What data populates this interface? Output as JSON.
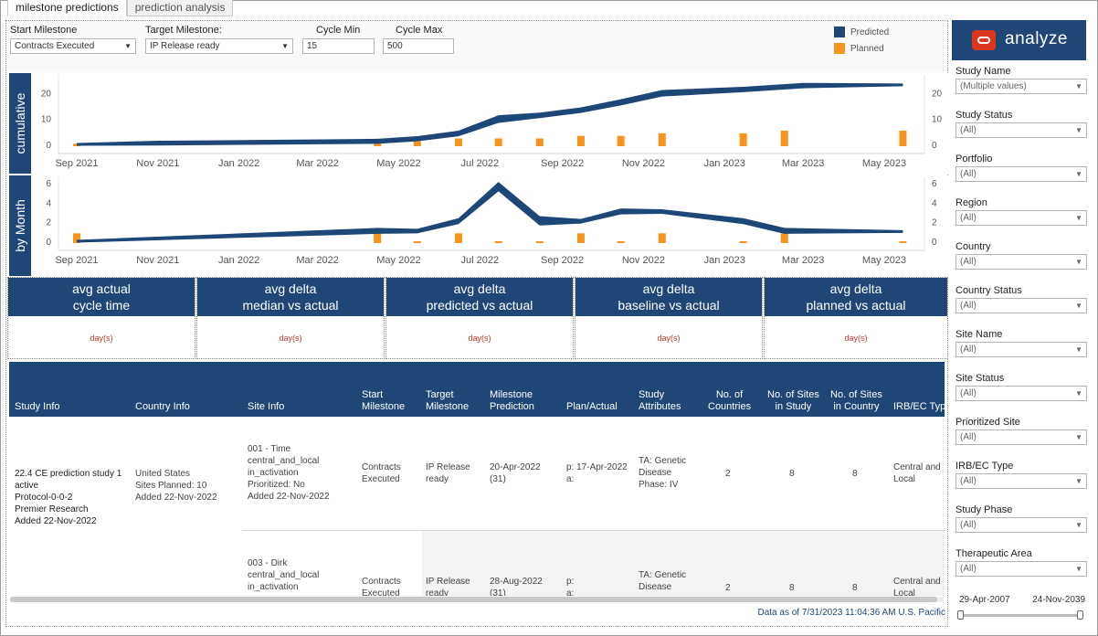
{
  "tabs": [
    {
      "label": "milestone predictions",
      "active": true
    },
    {
      "label": "prediction analysis",
      "active": false
    }
  ],
  "controls": {
    "start_milestone": {
      "label": "Start Milestone",
      "value": "Contracts Executed"
    },
    "target_milestone": {
      "label": "Target Milestone:",
      "value": "IP Release ready"
    },
    "cycle_min": {
      "label": "Cycle Min",
      "value": "15"
    },
    "cycle_max": {
      "label": "Cycle Max",
      "value": "500"
    }
  },
  "legend": {
    "predicted": {
      "label": "Predicted",
      "color": "#1e4778"
    },
    "planned": {
      "label": "Planned",
      "color": "#f7941d"
    }
  },
  "chart_data": [
    {
      "type": "line",
      "panel_label": "cumulative",
      "x_ticks": [
        "Sep 2021",
        "Nov 2021",
        "Jan 2022",
        "Mar 2022",
        "May 2022",
        "Jul 2022",
        "Sep 2022",
        "Nov 2022",
        "Jan 2023",
        "Mar 2023",
        "May 2023"
      ],
      "y_ticks_left": [
        0,
        10,
        20
      ],
      "y_ticks_right": [
        0,
        10,
        20
      ],
      "ylim": [
        0,
        24
      ],
      "series": [
        {
          "name": "Predicted",
          "color": "#1e4778",
          "points": [
            [
              "2021-09-01",
              0
            ],
            [
              "2021-11-01",
              0.3
            ],
            [
              "2022-04-15",
              1
            ],
            [
              "2022-05-15",
              2
            ],
            [
              "2022-06-15",
              4
            ],
            [
              "2022-07-15",
              9.5
            ],
            [
              "2022-08-15",
              11
            ],
            [
              "2022-09-15",
              13
            ],
            [
              "2022-10-15",
              16
            ],
            [
              "2022-11-15",
              19.5
            ],
            [
              "2023-01-15",
              21
            ],
            [
              "2023-03-01",
              22.5
            ],
            [
              "2023-05-15",
              23
            ]
          ]
        },
        {
          "name": "Planned",
          "color": "#f7941d",
          "type": "bar",
          "points": [
            [
              "2021-09-01",
              1
            ],
            [
              "2022-04-15",
              1.5
            ],
            [
              "2022-05-15",
              2
            ],
            [
              "2022-06-15",
              3
            ],
            [
              "2022-07-15",
              3
            ],
            [
              "2022-08-15",
              3
            ],
            [
              "2022-09-15",
              4
            ],
            [
              "2022-10-15",
              4
            ],
            [
              "2022-11-15",
              5
            ],
            [
              "2023-01-15",
              5
            ],
            [
              "2023-02-15",
              6
            ],
            [
              "2023-05-15",
              6
            ]
          ]
        }
      ]
    },
    {
      "type": "line",
      "panel_label": "by Month",
      "x_ticks": [
        "Sep 2021",
        "Nov 2021",
        "Jan 2022",
        "Mar 2022",
        "May 2022",
        "Jul 2022",
        "Sep 2022",
        "Nov 2022",
        "Jan 2023",
        "Mar 2023",
        "May 2023"
      ],
      "y_ticks_left": [
        0,
        2,
        4,
        6
      ],
      "y_ticks_right": [
        0,
        2,
        4,
        6
      ],
      "ylim": [
        0,
        6
      ],
      "series": [
        {
          "name": "Predicted",
          "color": "#1e4778",
          "points": [
            [
              "2021-09-01",
              0
            ],
            [
              "2022-04-15",
              1
            ],
            [
              "2022-05-15",
              1
            ],
            [
              "2022-06-15",
              2
            ],
            [
              "2022-07-15",
              5.5
            ],
            [
              "2022-08-15",
              2
            ],
            [
              "2022-09-15",
              2
            ],
            [
              "2022-10-15",
              3
            ],
            [
              "2022-11-15",
              3
            ],
            [
              "2023-01-15",
              2
            ],
            [
              "2023-02-15",
              1
            ],
            [
              "2023-05-15",
              1
            ]
          ]
        },
        {
          "name": "Planned",
          "color": "#f7941d",
          "type": "bar",
          "points": [
            [
              "2021-09-01",
              1
            ],
            [
              "2022-04-15",
              1
            ],
            [
              "2022-05-15",
              0.1
            ],
            [
              "2022-06-15",
              1
            ],
            [
              "2022-07-15",
              0.1
            ],
            [
              "2022-08-15",
              0.1
            ],
            [
              "2022-09-15",
              1
            ],
            [
              "2022-10-15",
              0.1
            ],
            [
              "2022-11-15",
              1
            ],
            [
              "2023-01-15",
              0.1
            ],
            [
              "2023-02-15",
              1
            ],
            [
              "2023-05-15",
              0.1
            ]
          ]
        }
      ]
    }
  ],
  "kpis": [
    {
      "title1": "avg actual",
      "title2": "cycle time",
      "value": "day(s)"
    },
    {
      "title1": "avg delta",
      "title2": "median vs actual",
      "value": "day(s)"
    },
    {
      "title1": "avg delta",
      "title2": "predicted vs actual",
      "value": "day(s)"
    },
    {
      "title1": "avg delta",
      "title2": "baseline vs actual",
      "value": "day(s)"
    },
    {
      "title1": "avg delta",
      "title2": "planned vs actual",
      "value": "day(s)"
    }
  ],
  "table": {
    "headers": [
      "Study Info",
      "Country Info",
      "Site Info",
      "Start\nMilestone",
      "Target\nMilestone",
      "Milestone\nPrediction",
      "Plan/Actual",
      "Study\nAttributes",
      "No. of\nCountries",
      "No. of Sites\nin Study",
      "No. of Sites\nin Country",
      "IRB/EC Type"
    ],
    "study": [
      "22.4 CE prediction study 1",
      "active",
      "Protocol-0-0-2",
      "Premier Research",
      "Added 22-Nov-2022"
    ],
    "country": [
      "United States",
      "Sites Planned: 10",
      "Added 22-Nov-2022"
    ],
    "rows": [
      {
        "site": [
          "001 - Time",
          "central_and_local",
          "in_activation",
          "Prioritized: No",
          "Added 22-Nov-2022"
        ],
        "start": [
          "Contracts",
          "Executed"
        ],
        "target": [
          "IP Release",
          "ready"
        ],
        "prediction": [
          "20-Apr-2022",
          "(31)"
        ],
        "plan": [
          "p: 17-Apr-2022",
          "a:"
        ],
        "attrs": [
          "TA: Genetic",
          "Disease",
          "Phase: IV"
        ],
        "countries": "2",
        "sites_study": "8",
        "sites_country": "8",
        "irb": [
          "Central and",
          "Local"
        ]
      },
      {
        "site": [
          "003 - Dirk",
          "central_and_local",
          "in_activation"
        ],
        "start": [
          "Contracts",
          "Executed"
        ],
        "target": [
          "IP Release",
          "ready"
        ],
        "prediction": [
          "28-Aug-2022",
          "(31)"
        ],
        "plan": [
          "p:",
          "a:"
        ],
        "attrs": [
          "TA: Genetic",
          "Disease"
        ],
        "countries": "2",
        "sites_study": "8",
        "sites_country": "8",
        "irb": [
          "Central and",
          "Local"
        ]
      }
    ]
  },
  "footer": "Data as of 7/31/2023 11:04:36 AM U.S. Pacific",
  "brand": "analyze",
  "filters": [
    {
      "label": "Study Name",
      "value": "(Multiple values)"
    },
    {
      "label": "Study Status",
      "value": "(All)"
    },
    {
      "label": "Portfolio",
      "value": "(All)"
    },
    {
      "label": "Region",
      "value": "(All)"
    },
    {
      "label": "Country",
      "value": "(All)"
    },
    {
      "label": "Country Status",
      "value": "(All)"
    },
    {
      "label": "Site Name",
      "value": "(All)"
    },
    {
      "label": "Site Status",
      "value": "(All)"
    },
    {
      "label": "Prioritized Site",
      "value": "(All)"
    },
    {
      "label": "IRB/EC Type",
      "value": "(All)"
    },
    {
      "label": "Study Phase",
      "value": "(All)"
    },
    {
      "label": "Therapeutic Area",
      "value": "(All)"
    }
  ],
  "date_range": {
    "start": "29-Apr-2007",
    "end": "24-Nov-2039"
  }
}
